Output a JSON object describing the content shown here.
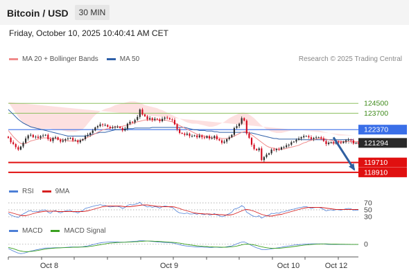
{
  "header": {
    "title": "Bitcoin / USD",
    "timeframe": "30 MIN"
  },
  "datetime": "Friday, October 10, 2025 10:40:41 AM CET",
  "legend_main": [
    {
      "label": "MA 20 + Bollinger Bands",
      "color": "#f08a8a"
    },
    {
      "label": "MA 50",
      "color": "#2d5fa8"
    }
  ],
  "credit": "Research © 2025 Trading Central",
  "legend_rsi": [
    {
      "label": "RSI",
      "color": "#4d7fd6"
    },
    {
      "label": "9MA",
      "color": "#d62020"
    }
  ],
  "legend_macd": [
    {
      "label": "MACD",
      "color": "#4d7fd6"
    },
    {
      "label": "MACD Signal",
      "color": "#3aa020"
    }
  ],
  "x_labels": [
    "Oct 8",
    "Oct 9",
    "Oct 10",
    "Oct 12"
  ],
  "colors": {
    "up": "#2a2a2a",
    "down": "#d40a1e",
    "band_fill": "#fde0e0",
    "resistance": "#8dc060",
    "pivot": "#3a6fe8",
    "support": "#e01010",
    "last_bg": "#2a2a2a"
  },
  "chart_data": {
    "type": "candlestick",
    "symbol": "BTC/USD",
    "timeframe": "30 MIN",
    "price_range": [
      118400,
      125800
    ],
    "levels": [
      {
        "price": 124500,
        "label": "124500",
        "kind": "resistance"
      },
      {
        "price": 123700,
        "label": "123700",
        "kind": "resistance"
      },
      {
        "price": 122370,
        "label": "122370",
        "kind": "pivot"
      },
      {
        "price": 121294,
        "label": "121294",
        "kind": "last"
      },
      {
        "price": 119710,
        "label": "119710",
        "kind": "support"
      },
      {
        "price": 118910,
        "label": "118910",
        "kind": "support"
      }
    ],
    "closes": [
      121700,
      121350,
      121200,
      120950,
      120750,
      121000,
      121300,
      121650,
      121900,
      121950,
      121750,
      121800,
      121700,
      121850,
      121900,
      121950,
      121600,
      121450,
      121700,
      121750,
      121550,
      121400,
      121500,
      121600,
      121650,
      121700,
      121500,
      121500,
      121350,
      121500,
      121600,
      121850,
      121950,
      122100,
      122300,
      122550,
      122650,
      122800,
      122750,
      122750,
      122600,
      122500,
      122550,
      122600,
      122600,
      122500,
      122300,
      122450,
      122850,
      123000,
      122950,
      123150,
      123400,
      124000,
      123600,
      123450,
      123200,
      123300,
      123150,
      123250,
      123200,
      123050,
      123250,
      123350,
      123300,
      123200,
      123150,
      122800,
      122400,
      122100,
      122050,
      121950,
      122050,
      121850,
      121850,
      121900,
      121750,
      121900,
      121750,
      121700,
      121850,
      121650,
      121700,
      121850,
      121600,
      121500,
      121300,
      121400,
      121600,
      121750,
      121950,
      122500,
      122650,
      122850,
      123300,
      123100,
      122050,
      121700,
      121150,
      120800,
      120700,
      120850,
      119900,
      120150,
      120350,
      120450,
      120750,
      120700,
      120800,
      120750,
      120950,
      120950,
      121100,
      121150,
      121350,
      121400,
      121550,
      121650,
      121750,
      121850,
      121850,
      121750,
      121600,
      121700,
      121750,
      121750,
      121650,
      121450,
      121200,
      121300,
      121350,
      121250,
      121400,
      121350,
      121300,
      121400,
      121500,
      121550,
      121500,
      121250,
      121300,
      121294
    ],
    "ma20": [
      122300,
      122050,
      121800,
      121600,
      121400,
      121250,
      121200,
      121250,
      121350,
      121450,
      121500,
      121550,
      121600,
      121650,
      121700,
      121700,
      121700,
      121650,
      121650,
      121650,
      121600,
      121600,
      121550,
      121500,
      121450,
      121450,
      121450,
      121450,
      121450,
      121500,
      121550,
      121650,
      121750,
      121850,
      121950,
      122050,
      122150,
      122250,
      122350,
      122400,
      122450,
      122500,
      122550,
      122600,
      122600,
      122600,
      122650,
      122700,
      122750,
      122800,
      122850,
      122950,
      123000,
      123050,
      123100,
      123150,
      123150,
      123150,
      123150,
      123150,
      123150,
      123150,
      123150,
      123150,
      123100,
      123050,
      123000,
      122900,
      122800,
      122700,
      122600,
      122500,
      122400,
      122300,
      122200,
      122100,
      122000,
      121950,
      121900,
      121850,
      121800,
      121750,
      121700,
      121700,
      121700,
      121700,
      121650,
      121650,
      121650,
      121700,
      121750,
      121850,
      121950,
      122050,
      122150,
      122200,
      122200,
      122100,
      121950,
      121800,
      121650,
      121500,
      121350,
      121200,
      121050,
      120950,
      120900,
      120850,
      120800,
      120800,
      120800,
      120800,
      120850,
      120900,
      120950,
      121000,
      121050,
      121100,
      121200,
      121300,
      121350,
      121450,
      121500,
      121550,
      121600,
      121650,
      121650,
      121650,
      121600,
      121550,
      121500,
      121450,
      121450,
      121450,
      121400,
      121400,
      121400,
      121400,
      121400,
      121400,
      121400,
      121400
    ],
    "bb_upper": [
      124600,
      124300,
      124000,
      123700,
      123400,
      123150,
      122900,
      122750,
      122650,
      122550,
      122500,
      122450,
      122400,
      122400,
      122400,
      122450,
      122450,
      122450,
      122400,
      122400,
      122350,
      122350,
      122300,
      122250,
      122200,
      122200,
      122200,
      122200,
      122250,
      122300,
      122400,
      122600,
      122850,
      123100,
      123350,
      123550,
      123700,
      123850,
      123950,
      124050,
      124100,
      124150,
      124250,
      124350,
      124400,
      124450,
      124500,
      124550,
      124600,
      124650,
      124650,
      124650,
      124600,
      124550,
      124450,
      124350,
      124300,
      124250,
      124200,
      124150,
      124100,
      124000,
      123950,
      123850,
      123750,
      123650,
      123550,
      123450,
      123350,
      123250,
      123150,
      123050,
      122950,
      122900,
      122850,
      122850,
      122850,
      122800,
      122750,
      122700,
      122650,
      122600,
      122600,
      122650,
      122700,
      122800,
      122900,
      123000,
      123150,
      123300,
      123400,
      123500,
      123600,
      123700,
      123750,
      123750,
      123700,
      123600,
      123450,
      123300,
      123100,
      122900,
      122700,
      122550,
      122400,
      122300,
      122200,
      122150,
      122100,
      122100,
      122100,
      122150,
      122200,
      122250,
      122300,
      122300,
      122300,
      122300,
      122300,
      122300,
      122300,
      122300,
      122300,
      122300,
      122300,
      122300,
      122250,
      122200,
      122150,
      122100,
      122050,
      122000,
      121950,
      121900,
      121900,
      121900,
      121900,
      121900,
      121900,
      121900
    ],
    "bb_lower": [
      120200,
      120000,
      119850,
      119750,
      119700,
      119800,
      119950,
      120050,
      120200,
      120350,
      120500,
      120650,
      120800,
      120900,
      120950,
      120950,
      120900,
      120850,
      120850,
      120850,
      120850,
      120800,
      120750,
      120700,
      120700,
      120700,
      120700,
      120700,
      120700,
      120700,
      120700,
      120700,
      120700,
      120700,
      120750,
      120800,
      120850,
      120900,
      120950,
      121000,
      121050,
      121100,
      121150,
      121200,
      121250,
      121300,
      121350,
      121400,
      121450,
      121550,
      121650,
      121750,
      121850,
      121950,
      122000,
      122050,
      122050,
      122050,
      122050,
      122050,
      122050,
      122000,
      121950,
      121900,
      121850,
      121800,
      121750,
      121700,
      121600,
      121500,
      121400,
      121300,
      121200,
      121100,
      121000,
      120950,
      120900,
      120850,
      120850,
      120850,
      120850,
      120800,
      120800,
      120750,
      120700,
      120650,
      120600,
      120550,
      120500,
      120450,
      120400,
      120350,
      120300,
      120250,
      120200,
      120150,
      120100,
      120000,
      119850,
      119700,
      119600,
      119500,
      119400,
      119350,
      119300,
      119300,
      119300,
      119300,
      119350,
      119400,
      119450,
      119500,
      119550,
      119650,
      119750,
      119850,
      119950,
      120050,
      120150,
      120250,
      120350,
      120450,
      120550,
      120600,
      120650,
      120700,
      120750,
      120800,
      120850,
      120900,
      120950,
      121000,
      121000,
      121000,
      121000,
      121000,
      121000,
      121000,
      121000,
      121000
    ],
    "ma50": [
      124000,
      123800,
      123600,
      123400,
      123200,
      123050,
      122900,
      122800,
      122700,
      122600,
      122550,
      122500,
      122450,
      122400,
      122350,
      122300,
      122250,
      122200,
      122150,
      122100,
      122050,
      122000,
      121950,
      121900,
      121850,
      121850,
      121850,
      121850,
      121850,
      121850,
      121850,
      121850,
      121900,
      121950,
      122000,
      122050,
      122100,
      122150,
      122150,
      122150,
      122200,
      122250,
      122300,
      122350,
      122350,
      122350,
      122400,
      122400,
      122450,
      122450,
      122450,
      122500,
      122500,
      122500,
      122500,
      122500,
      122500,
      122500,
      122550,
      122550,
      122550,
      122550,
      122550,
      122550,
      122550,
      122550,
      122550,
      122550,
      122550,
      122550,
      122550,
      122550,
      122500,
      122450,
      122400,
      122350,
      122350,
      122300,
      122300,
      122300,
      122250,
      122250,
      122250,
      122200,
      122200,
      122150,
      122150,
      122150,
      122150,
      122150,
      122150,
      122150,
      122150,
      122150,
      122150,
      122150,
      122150,
      122100,
      122100,
      122050,
      122000,
      121950,
      121900,
      121850,
      121800,
      121750,
      121700,
      121650,
      121650,
      121600,
      121600,
      121600,
      121600,
      121600,
      121600,
      121600,
      121600,
      121600,
      121550,
      121550,
      121550,
      121550,
      121550,
      121550,
      121550,
      121550,
      121550,
      121550,
      121550,
      121550,
      121550,
      121550,
      121550,
      121550,
      121550,
      121550,
      121550,
      121550,
      121550,
      121550
    ],
    "forecast_arrow": {
      "from_price": 121300,
      "to_price": 118910
    },
    "rsi": {
      "levels": [
        70,
        50,
        30
      ],
      "range": [
        20,
        80
      ],
      "rsi": [
        40,
        35,
        32,
        30,
        28,
        34,
        38,
        42,
        46,
        48,
        44,
        46,
        44,
        48,
        49,
        50,
        43,
        40,
        46,
        48,
        44,
        41,
        44,
        47,
        48,
        49,
        44,
        44,
        41,
        45,
        48,
        54,
        56,
        58,
        60,
        62,
        63,
        65,
        63,
        63,
        60,
        58,
        59,
        60,
        60,
        58,
        54,
        57,
        63,
        65,
        64,
        66,
        68,
        72,
        64,
        62,
        58,
        60,
        57,
        59,
        58,
        55,
        59,
        61,
        60,
        58,
        57,
        51,
        45,
        41,
        40,
        39,
        41,
        38,
        38,
        39,
        37,
        40,
        37,
        36,
        39,
        35,
        36,
        39,
        35,
        33,
        30,
        32,
        36,
        39,
        43,
        52,
        54,
        57,
        62,
        58,
        43,
        39,
        34,
        31,
        30,
        33,
        26,
        30,
        33,
        35,
        40,
        39,
        41,
        40,
        44,
        44,
        47,
        48,
        51,
        52,
        54,
        56,
        57,
        59,
        59,
        57,
        54,
        56,
        57,
        57,
        55,
        51,
        47,
        49,
        50,
        48,
        51,
        50,
        49,
        51,
        53,
        54,
        53,
        48,
        49,
        49
      ],
      "ma9": [
        44,
        42,
        40,
        38,
        36,
        34,
        33,
        33,
        35,
        37,
        39,
        41,
        43,
        44,
        45,
        46,
        46,
        46,
        46,
        46,
        45,
        45,
        45,
        45,
        45,
        45,
        45,
        45,
        45,
        45,
        45,
        46,
        47,
        49,
        51,
        53,
        55,
        57,
        59,
        60,
        61,
        61,
        61,
        61,
        61,
        61,
        60,
        59,
        59,
        59,
        60,
        61,
        62,
        63,
        64,
        64,
        64,
        63,
        62,
        61,
        60,
        60,
        59,
        59,
        59,
        59,
        59,
        58,
        56,
        54,
        51,
        49,
        47,
        45,
        43,
        41,
        40,
        39,
        39,
        38,
        38,
        38,
        37,
        37,
        37,
        36,
        36,
        35,
        35,
        35,
        36,
        38,
        41,
        44,
        47,
        50,
        51,
        50,
        48,
        46,
        43,
        40,
        37,
        35,
        33,
        32,
        32,
        33,
        35,
        36,
        37,
        39,
        41,
        43,
        45,
        47,
        49,
        51,
        53,
        55,
        56,
        57,
        57,
        57,
        57,
        57,
        57,
        56,
        55,
        54,
        53,
        52,
        51,
        51,
        51,
        51,
        51,
        51,
        51,
        51,
        51,
        51
      ]
    },
    "macd": {
      "zero_label": "0",
      "range": [
        -500,
        250
      ],
      "macd": [
        -200,
        -260,
        -320,
        -370,
        -420,
        -440,
        -430,
        -400,
        -360,
        -320,
        -300,
        -270,
        -250,
        -220,
        -200,
        -180,
        -180,
        -180,
        -170,
        -160,
        -160,
        -160,
        -160,
        -150,
        -140,
        -130,
        -130,
        -130,
        -130,
        -130,
        -120,
        -100,
        -80,
        -50,
        -20,
        10,
        40,
        60,
        80,
        90,
        100,
        110,
        110,
        110,
        110,
        100,
        100,
        100,
        110,
        120,
        130,
        140,
        150,
        170,
        170,
        160,
        150,
        140,
        130,
        120,
        110,
        100,
        90,
        80,
        80,
        70,
        60,
        40,
        10,
        -20,
        -50,
        -70,
        -90,
        -100,
        -110,
        -120,
        -130,
        -130,
        -130,
        -140,
        -140,
        -150,
        -150,
        -140,
        -140,
        -150,
        -150,
        -140,
        -120,
        -100,
        -80,
        -30,
        20,
        60,
        100,
        110,
        60,
        0,
        -60,
        -120,
        -170,
        -200,
        -250,
        -260,
        -250,
        -240,
        -220,
        -200,
        -180,
        -160,
        -140,
        -120,
        -100,
        -80,
        -60,
        -40,
        -30,
        -20,
        -10,
        0,
        10,
        20,
        20,
        20,
        20,
        20,
        20,
        10,
        0,
        -10,
        -10,
        -10,
        -10,
        -10,
        -10,
        -10,
        -10,
        -10,
        -10,
        -10,
        -10,
        -10
      ],
      "signal": [
        -150,
        -180,
        -210,
        -250,
        -290,
        -320,
        -340,
        -350,
        -350,
        -340,
        -330,
        -310,
        -290,
        -270,
        -250,
        -230,
        -210,
        -200,
        -190,
        -180,
        -175,
        -170,
        -165,
        -160,
        -155,
        -150,
        -145,
        -140,
        -140,
        -135,
        -130,
        -125,
        -115,
        -100,
        -85,
        -65,
        -45,
        -25,
        -5,
        15,
        35,
        50,
        60,
        70,
        80,
        85,
        90,
        95,
        100,
        105,
        110,
        115,
        120,
        130,
        140,
        145,
        148,
        148,
        145,
        140,
        135,
        128,
        120,
        112,
        105,
        98,
        90,
        80,
        65,
        50,
        30,
        10,
        -10,
        -30,
        -45,
        -60,
        -75,
        -85,
        -95,
        -105,
        -110,
        -118,
        -125,
        -130,
        -133,
        -136,
        -140,
        -140,
        -138,
        -132,
        -122,
        -105,
        -85,
        -60,
        -30,
        -5,
        5,
        0,
        -15,
        -35,
        -60,
        -90,
        -120,
        -145,
        -165,
        -180,
        -190,
        -195,
        -195,
        -190,
        -180,
        -168,
        -155,
        -140,
        -125,
        -108,
        -92,
        -77,
        -62,
        -48,
        -35,
        -23,
        -13,
        -5,
        2,
        8,
        12,
        14,
        14,
        12,
        10,
        7,
        4,
        2,
        0,
        -2,
        -4,
        -5,
        -6,
        -7,
        -8,
        -8
      ]
    }
  }
}
